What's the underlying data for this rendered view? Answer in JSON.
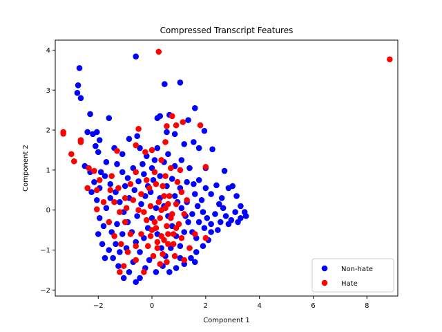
{
  "chart_data": {
    "type": "scatter",
    "title": "Compressed Transcript Features",
    "xlabel": "Component 1",
    "ylabel": "Component 2",
    "xlim": [
      -3.6,
      9.15
    ],
    "ylim": [
      -2.15,
      4.25
    ],
    "xticks": [
      "−2",
      "0",
      "2",
      "4",
      "6",
      "8"
    ],
    "xtick_values": [
      -2,
      0,
      2,
      4,
      6,
      8
    ],
    "yticks": [
      "−2",
      "−1",
      "0",
      "1",
      "2",
      "3",
      "4"
    ],
    "ytick_values": [
      -2,
      -1,
      0,
      1,
      2,
      3,
      4
    ],
    "grid": false,
    "legend_position": "lower-right",
    "series": [
      {
        "name": "Non-hate",
        "color": "#0000ff",
        "points": [
          [
            -2.7,
            3.55
          ],
          [
            -2.75,
            3.12
          ],
          [
            -2.78,
            2.93
          ],
          [
            -2.65,
            2.8
          ],
          [
            -0.6,
            3.84
          ],
          [
            0.47,
            3.15
          ],
          [
            1.05,
            3.19
          ],
          [
            -2.3,
            2.4
          ],
          [
            -1.6,
            2.3
          ],
          [
            0.3,
            2.35
          ],
          [
            0.65,
            2.38
          ],
          [
            1.6,
            2.55
          ],
          [
            1.35,
            2.25
          ],
          [
            0.2,
            2.3
          ],
          [
            -2.4,
            1.95
          ],
          [
            -2.2,
            1.9
          ],
          [
            -2.05,
            1.95
          ],
          [
            -1.95,
            1.75
          ],
          [
            -2.1,
            1.6
          ],
          [
            -2.0,
            1.45
          ],
          [
            -1.4,
            1.55
          ],
          [
            -1.1,
            1.4
          ],
          [
            -0.85,
            1.78
          ],
          [
            -0.55,
            1.85
          ],
          [
            -0.45,
            1.55
          ],
          [
            -0.2,
            1.35
          ],
          [
            0.1,
            1.25
          ],
          [
            0.55,
            1.95
          ],
          [
            0.85,
            1.9
          ],
          [
            1.2,
            1.65
          ],
          [
            1.55,
            1.7
          ],
          [
            1.75,
            1.55
          ],
          [
            1.95,
            1.98
          ],
          [
            2.25,
            1.52
          ],
          [
            1.1,
            1.25
          ],
          [
            0.85,
            1.1
          ],
          [
            0.45,
            1.2
          ],
          [
            1.4,
            1.05
          ],
          [
            2.0,
            1.05
          ],
          [
            2.7,
            0.98
          ],
          [
            -2.5,
            1.1
          ],
          [
            -2.3,
            0.95
          ],
          [
            -2.15,
            0.7
          ],
          [
            -1.95,
            0.55
          ],
          [
            -1.75,
            0.85
          ],
          [
            -1.55,
            0.65
          ],
          [
            -1.3,
            1.15
          ],
          [
            -1.1,
            0.95
          ],
          [
            -0.9,
            0.8
          ],
          [
            -0.7,
            1.05
          ],
          [
            -0.5,
            0.72
          ],
          [
            -0.3,
            0.9
          ],
          [
            -0.15,
            0.6
          ],
          [
            0.05,
            0.75
          ],
          [
            0.3,
            0.85
          ],
          [
            0.55,
            0.6
          ],
          [
            0.75,
            0.78
          ],
          [
            1.05,
            0.55
          ],
          [
            1.3,
            0.7
          ],
          [
            1.55,
            0.65
          ],
          [
            1.75,
            0.75
          ],
          [
            2.0,
            0.55
          ],
          [
            2.2,
            0.4
          ],
          [
            2.4,
            0.62
          ],
          [
            2.6,
            0.3
          ],
          [
            2.85,
            0.55
          ],
          [
            3.0,
            0.6
          ],
          [
            3.15,
            0.35
          ],
          [
            3.3,
            0.1
          ],
          [
            3.45,
            -0.05
          ],
          [
            3.5,
            -0.15
          ],
          [
            3.3,
            -0.2
          ],
          [
            3.1,
            -0.05
          ],
          [
            2.95,
            -0.25
          ],
          [
            2.75,
            -0.15
          ],
          [
            2.55,
            -0.3
          ],
          [
            2.35,
            -0.1
          ],
          [
            2.2,
            -0.35
          ],
          [
            2.05,
            -0.2
          ],
          [
            1.9,
            -0.05
          ],
          [
            1.7,
            0.1
          ],
          [
            1.5,
            -0.1
          ],
          [
            1.3,
            0.2
          ],
          [
            2.45,
            -0.5
          ],
          [
            2.2,
            -0.55
          ],
          [
            1.95,
            -0.45
          ],
          [
            1.75,
            -0.3
          ],
          [
            2.1,
            -0.75
          ],
          [
            1.9,
            -0.9
          ],
          [
            1.65,
            -1.05
          ],
          [
            1.45,
            -1.2
          ],
          [
            1.6,
            -1.3
          ],
          [
            1.2,
            -1.35
          ],
          [
            1.05,
            -1.2
          ],
          [
            0.9,
            -1.45
          ],
          [
            0.65,
            -1.55
          ],
          [
            0.4,
            -1.4
          ],
          [
            0.15,
            -1.55
          ],
          [
            -0.1,
            -1.25
          ],
          [
            -0.25,
            -1.45
          ],
          [
            -0.45,
            -1.7
          ],
          [
            -0.6,
            -1.8
          ],
          [
            -0.85,
            -1.55
          ],
          [
            -1.05,
            -1.7
          ],
          [
            -1.25,
            -1.4
          ],
          [
            -1.45,
            -1.2
          ],
          [
            -1.75,
            -1.2
          ],
          [
            -1.6,
            -1.0
          ],
          [
            -1.35,
            -0.85
          ],
          [
            -1.85,
            -0.85
          ],
          [
            -2.0,
            -0.6
          ],
          [
            -1.8,
            -0.4
          ],
          [
            -1.95,
            -0.2
          ],
          [
            -1.7,
            0.05
          ],
          [
            -1.55,
            0.3
          ],
          [
            -1.35,
            0.45
          ],
          [
            -1.2,
            0.2
          ],
          [
            -1.05,
            -0.05
          ],
          [
            -0.9,
            -0.3
          ],
          [
            -0.75,
            -0.55
          ],
          [
            -0.6,
            -0.8
          ],
          [
            -0.45,
            -1.05
          ],
          [
            -0.3,
            -0.7
          ],
          [
            -0.15,
            -0.45
          ],
          [
            0.0,
            -0.2
          ],
          [
            0.15,
            0.05
          ],
          [
            0.3,
            0.3
          ],
          [
            0.45,
            0.1
          ],
          [
            0.6,
            -0.15
          ],
          [
            0.75,
            -0.4
          ],
          [
            0.9,
            -0.65
          ],
          [
            1.05,
            -0.9
          ],
          [
            1.2,
            -0.55
          ],
          [
            1.35,
            -0.3
          ],
          [
            1.5,
            -0.55
          ],
          [
            1.65,
            -0.7
          ],
          [
            -1.5,
            -0.55
          ],
          [
            -1.3,
            -0.35
          ],
          [
            -1.1,
            -0.6
          ],
          [
            -0.95,
            -0.95
          ],
          [
            -1.2,
            -1.05
          ],
          [
            -0.7,
            -1.3
          ],
          [
            -0.55,
            -0.15
          ],
          [
            -0.4,
            0.15
          ],
          [
            -0.25,
            0.35
          ],
          [
            -0.05,
            0.45
          ],
          [
            0.2,
            -0.6
          ],
          [
            0.35,
            -0.95
          ],
          [
            0.5,
            -1.15
          ],
          [
            0.7,
            -0.95
          ],
          [
            0.95,
            0.2
          ],
          [
            1.1,
            0.05
          ],
          [
            1.25,
            -0.15
          ],
          [
            2.65,
            0.05
          ],
          [
            2.85,
            -0.35
          ],
          [
            3.2,
            -0.3
          ],
          [
            2.5,
            0.15
          ],
          [
            -2.25,
            0.45
          ],
          [
            -2.05,
            0.25
          ],
          [
            -1.9,
            0.95
          ],
          [
            -1.7,
            1.2
          ],
          [
            -0.35,
            1.15
          ],
          [
            0.0,
            1.05
          ],
          [
            0.2,
            1.55
          ],
          [
            0.6,
            1.4
          ],
          [
            -0.65,
            0.5
          ],
          [
            -0.85,
            0.3
          ],
          [
            -1.0,
            0.6
          ],
          [
            0.85,
            0.35
          ],
          [
            1.6,
            0.4
          ],
          [
            1.85,
            0.25
          ]
        ]
      },
      {
        "name": "Hate",
        "color": "#ff0000",
        "points": [
          [
            0.25,
            3.96
          ],
          [
            8.85,
            3.77
          ],
          [
            -3.3,
            1.95
          ],
          [
            -3.3,
            1.91
          ],
          [
            -2.65,
            1.75
          ],
          [
            -2.65,
            1.7
          ],
          [
            -3.0,
            1.4
          ],
          [
            -2.9,
            1.22
          ],
          [
            -2.35,
            1.05
          ],
          [
            -2.15,
            0.98
          ],
          [
            -2.4,
            0.55
          ],
          [
            -2.05,
            0.5
          ],
          [
            -2.05,
            0.02
          ],
          [
            -1.3,
            1.48
          ],
          [
            -0.6,
            1.62
          ],
          [
            -0.5,
            2.03
          ],
          [
            -0.25,
            1.45
          ],
          [
            0.0,
            1.5
          ],
          [
            0.5,
            1.7
          ],
          [
            0.55,
            2.1
          ],
          [
            0.75,
            2.35
          ],
          [
            0.9,
            2.12
          ],
          [
            1.15,
            2.2
          ],
          [
            1.8,
            2.12
          ],
          [
            2.0,
            1.08
          ],
          [
            0.35,
            1.25
          ],
          [
            0.7,
            1.05
          ],
          [
            1.05,
            1.0
          ],
          [
            -1.5,
            0.85
          ],
          [
            -1.25,
            0.55
          ],
          [
            -1.0,
            0.3
          ],
          [
            -0.8,
            0.65
          ],
          [
            -0.6,
            0.95
          ],
          [
            -0.4,
            0.4
          ],
          [
            -0.2,
            0.75
          ],
          [
            0.1,
            0.95
          ],
          [
            0.4,
            0.6
          ],
          [
            0.65,
            0.35
          ],
          [
            0.9,
            0.15
          ],
          [
            1.1,
            0.45
          ],
          [
            1.2,
            -0.1
          ],
          [
            1.0,
            -0.35
          ],
          [
            0.8,
            -0.6
          ],
          [
            0.6,
            -0.85
          ],
          [
            0.4,
            -1.1
          ],
          [
            0.2,
            -0.8
          ],
          [
            0.0,
            -0.5
          ],
          [
            -0.2,
            -0.25
          ],
          [
            -0.4,
            -0.6
          ],
          [
            -0.6,
            -0.9
          ],
          [
            -0.8,
            -0.6
          ],
          [
            -1.0,
            -0.3
          ],
          [
            -1.2,
            -0.05
          ],
          [
            -1.4,
            0.2
          ],
          [
            -1.6,
            -0.3
          ],
          [
            -1.4,
            -0.65
          ],
          [
            -1.15,
            -0.85
          ],
          [
            -0.9,
            -1.05
          ],
          [
            0.3,
            -0.2
          ],
          [
            0.5,
            0.05
          ],
          [
            0.7,
            -0.2
          ],
          [
            0.9,
            -0.45
          ],
          [
            1.1,
            -0.7
          ],
          [
            0.15,
            -0.45
          ],
          [
            0.35,
            -0.65
          ],
          [
            0.55,
            -0.4
          ],
          [
            0.75,
            -0.1
          ],
          [
            0.25,
            0.2
          ],
          [
            0.45,
            0.35
          ],
          [
            -0.05,
            0.1
          ],
          [
            -0.3,
            -0.05
          ],
          [
            -0.15,
            -0.9
          ],
          [
            0.05,
            -1.15
          ],
          [
            0.3,
            -1.35
          ],
          [
            0.55,
            -1.3
          ],
          [
            0.85,
            -1.15
          ],
          [
            1.2,
            -1.25
          ],
          [
            1.4,
            -0.95
          ],
          [
            1.6,
            -0.6
          ],
          [
            2.0,
            -0.7
          ],
          [
            -1.05,
            -1.4
          ],
          [
            -1.2,
            -1.55
          ],
          [
            -0.6,
            -1.25
          ],
          [
            -0.3,
            -1.55
          ],
          [
            -0.5,
            0.0
          ],
          [
            -0.7,
            0.25
          ],
          [
            -0.95,
            0.05
          ],
          [
            -1.55,
            0.5
          ],
          [
            -1.8,
            0.2
          ],
          [
            -1.95,
            0.75
          ],
          [
            -0.1,
            0.55
          ],
          [
            0.15,
            0.65
          ],
          [
            0.5,
            0.85
          ],
          [
            0.95,
            0.7
          ],
          [
            1.3,
            0.25
          ],
          [
            0.6,
            -0.6
          ],
          [
            0.8,
            -0.85
          ],
          [
            0.1,
            -0.3
          ],
          [
            0.35,
            0.0
          ],
          [
            0.6,
            0.15
          ],
          [
            0.2,
            -0.95
          ],
          [
            -0.05,
            -0.65
          ],
          [
            0.45,
            -0.75
          ]
        ]
      }
    ]
  }
}
